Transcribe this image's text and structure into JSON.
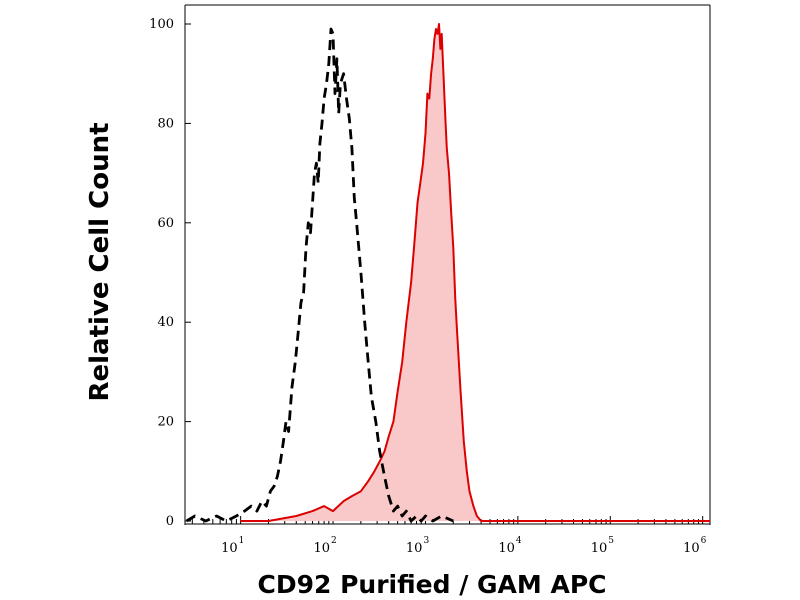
{
  "chart_data": {
    "type": "area",
    "xlabel": "CD92 Purified / GAM APC",
    "ylabel": "Relative Cell Count",
    "x_scale": "log",
    "xlim": [
      2.5,
      1200000
    ],
    "ylim": [
      0,
      100
    ],
    "x_ticks": [
      {
        "base": "10",
        "exp": "1",
        "value": 10
      },
      {
        "base": "10",
        "exp": "2",
        "value": 100
      },
      {
        "base": "10",
        "exp": "3",
        "value": 1000
      },
      {
        "base": "10",
        "exp": "4",
        "value": 10000
      },
      {
        "base": "10",
        "exp": "5",
        "value": 100000
      },
      {
        "base": "10",
        "exp": "6",
        "value": 1000000
      }
    ],
    "y_ticks": [
      "0",
      "20",
      "40",
      "60",
      "80",
      "100"
    ],
    "grid": false,
    "series": [
      {
        "style": "dashed",
        "color": "#000000",
        "fill": "none",
        "x": [
          2.6,
          3.2,
          4.2,
          5.5,
          7,
          9,
          11,
          13,
          15,
          17,
          19,
          21,
          23,
          25,
          27,
          29,
          31,
          33,
          36,
          39,
          42,
          45,
          48,
          51,
          54,
          57,
          60,
          63,
          66,
          69,
          72,
          76,
          80,
          85,
          90,
          95,
          100,
          105,
          110,
          115,
          120,
          130,
          140,
          150,
          160,
          170,
          180,
          200,
          220,
          240,
          260,
          290,
          320,
          360,
          400,
          450,
          500,
          560,
          620,
          700,
          800,
          900,
          1000,
          1200,
          1500,
          2000
        ],
        "y": [
          0,
          1,
          0,
          1,
          0,
          1,
          2,
          3,
          2,
          4,
          3,
          6,
          7,
          9,
          12,
          16,
          20,
          18,
          27,
          32,
          38,
          44,
          46,
          55,
          60,
          58,
          64,
          70,
          72,
          68,
          76,
          80,
          85,
          88,
          92,
          99,
          98,
          86,
          93,
          82,
          88,
          90,
          85,
          81,
          75,
          65,
          60,
          50,
          40,
          32,
          25,
          20,
          14,
          9,
          5,
          2,
          3,
          1,
          2,
          0,
          1,
          0,
          1,
          0,
          1,
          0
        ]
      },
      {
        "style": "solid",
        "color": "#dd0000",
        "fill": "#f9c8c8",
        "x": [
          10,
          20,
          40,
          60,
          80,
          100,
          130,
          160,
          200,
          240,
          280,
          320,
          360,
          400,
          450,
          500,
          560,
          620,
          700,
          760,
          820,
          880,
          940,
          1000,
          1050,
          1100,
          1150,
          1200,
          1250,
          1300,
          1350,
          1400,
          1450,
          1500,
          1550,
          1600,
          1650,
          1700,
          1800,
          1900,
          2000,
          2100,
          2200,
          2400,
          2600,
          2800,
          3000,
          3300,
          3600,
          4000,
          5000,
          10000,
          100000,
          1000000,
          1200000
        ],
        "y": [
          0,
          0,
          1,
          2,
          3,
          2,
          4,
          5,
          6,
          8,
          10,
          12,
          14,
          17,
          20,
          26,
          32,
          40,
          48,
          56,
          64,
          68,
          72,
          78,
          86,
          85,
          90,
          93,
          97,
          99,
          98,
          100,
          95,
          98,
          92,
          86,
          80,
          75,
          70,
          62,
          55,
          45,
          38,
          26,
          16,
          10,
          6,
          3,
          1,
          0,
          0,
          0,
          0,
          0,
          0
        ]
      }
    ]
  }
}
